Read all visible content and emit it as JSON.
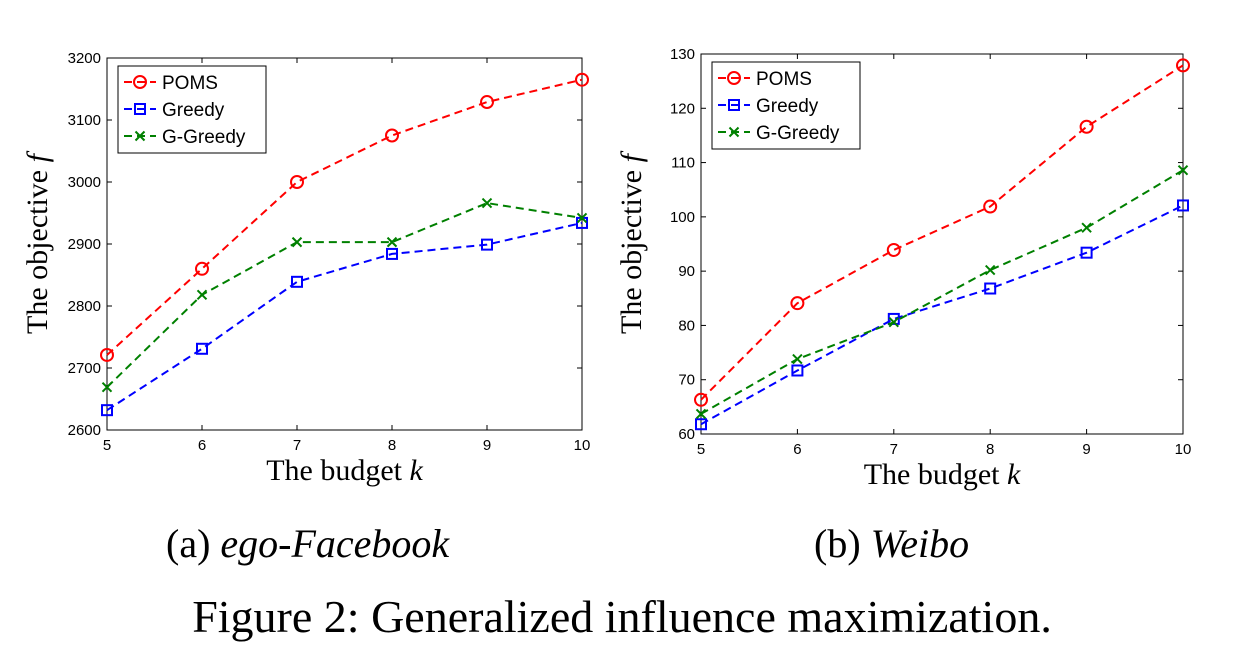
{
  "figure": {
    "caption": "Figure 2: Generalized influence maximization."
  },
  "colors": {
    "POMS": "#ff0000",
    "Greedy": "#0000ff",
    "G-Greedy": "#008000"
  },
  "chart_data": [
    {
      "type": "line",
      "subcaption_prefix": "(a)",
      "subcaption_name": "ego-Facebook",
      "xlabel_text": "The budget ",
      "xlabel_var": "k",
      "ylabel_text": "The objective ",
      "ylabel_var": "f",
      "x": [
        5,
        6,
        7,
        8,
        9,
        10
      ],
      "xlim": [
        5,
        10
      ],
      "ylim": [
        2600,
        3200
      ],
      "xticks": [
        5,
        6,
        7,
        8,
        9,
        10
      ],
      "yticks": [
        2600,
        2700,
        2800,
        2900,
        3000,
        3100,
        3200
      ],
      "grid": false,
      "legend_position": "top-left",
      "series": [
        {
          "name": "POMS",
          "marker": "circle",
          "values": [
            2721,
            2860,
            3000,
            3075,
            3129,
            3165
          ]
        },
        {
          "name": "Greedy",
          "marker": "square",
          "values": [
            2632,
            2731,
            2839,
            2884,
            2899,
            2934
          ]
        },
        {
          "name": "G-Greedy",
          "marker": "x",
          "values": [
            2669,
            2818,
            2903,
            2903,
            2966,
            2942
          ]
        }
      ]
    },
    {
      "type": "line",
      "subcaption_prefix": "(b)",
      "subcaption_name": "Weibo",
      "xlabel_text": "The budget ",
      "xlabel_var": "k",
      "ylabel_text": "The objective ",
      "ylabel_var": "f",
      "x": [
        5,
        6,
        7,
        8,
        9,
        10
      ],
      "xlim": [
        5,
        10
      ],
      "ylim": [
        60,
        130
      ],
      "xticks": [
        5,
        6,
        7,
        8,
        9,
        10
      ],
      "yticks": [
        60,
        70,
        80,
        90,
        100,
        110,
        120,
        130
      ],
      "grid": false,
      "legend_position": "top-left",
      "series": [
        {
          "name": "POMS",
          "marker": "circle",
          "values": [
            66.3,
            84.1,
            93.9,
            101.9,
            116.6,
            127.9
          ]
        },
        {
          "name": "Greedy",
          "marker": "square",
          "values": [
            61.8,
            71.7,
            81.2,
            86.8,
            93.4,
            102.1
          ]
        },
        {
          "name": "G-Greedy",
          "marker": "x",
          "values": [
            63.7,
            73.8,
            80.6,
            90.2,
            98.0,
            108.6
          ]
        }
      ]
    }
  ]
}
